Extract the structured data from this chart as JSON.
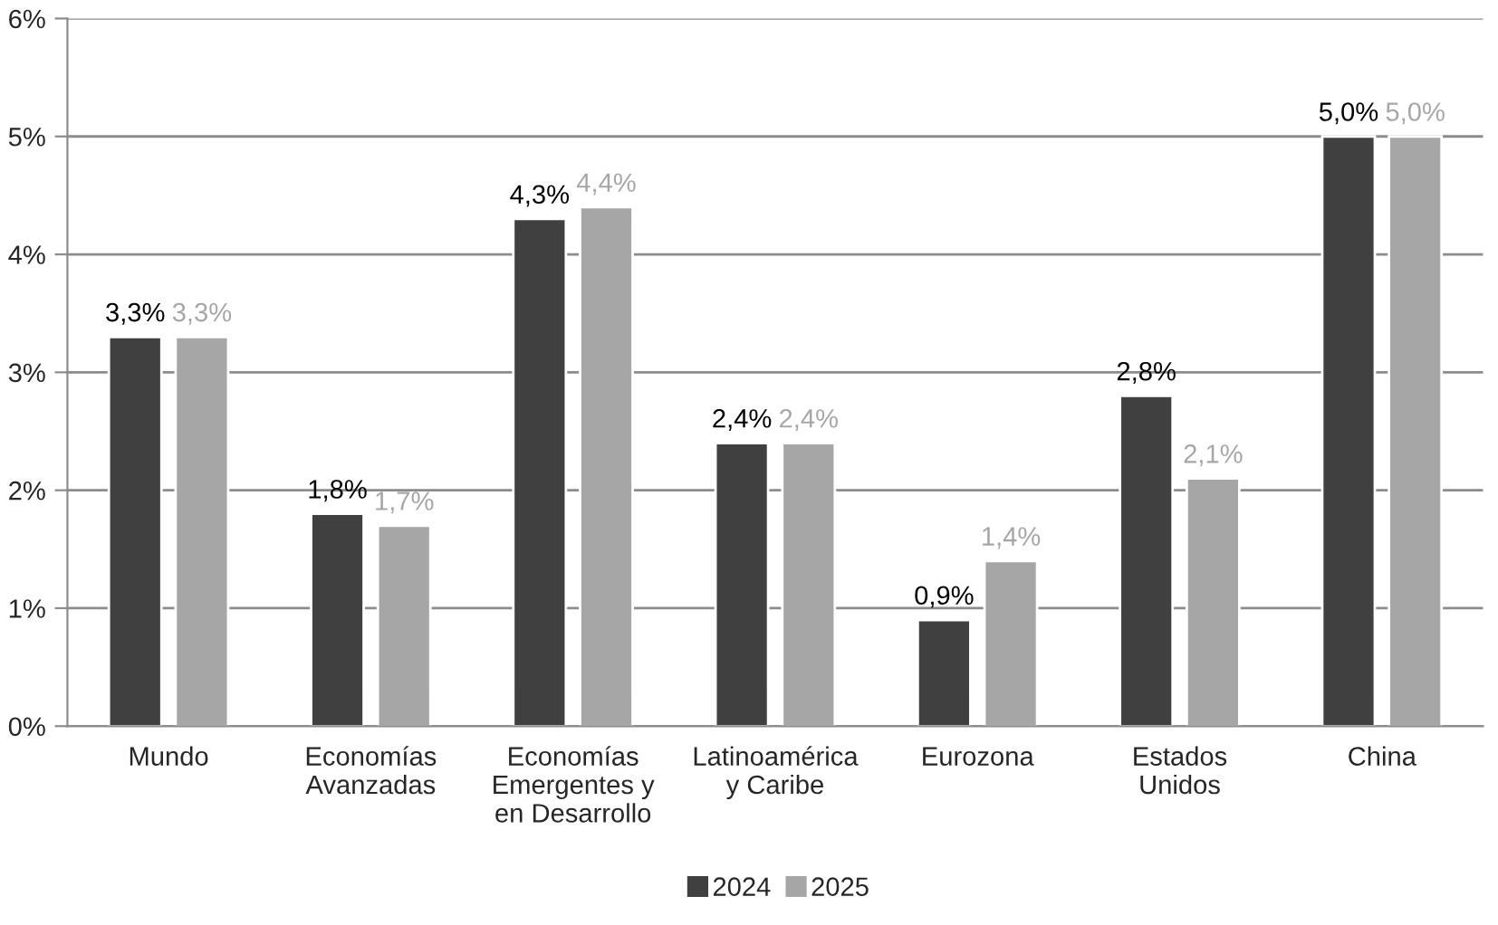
{
  "chart_data": {
    "type": "bar",
    "categories": [
      "Mundo",
      "Economías\nAvanzadas",
      "Economías\nEmergentes y\nen Desarrollo",
      "Latinoamérica\ny Caribe",
      "Eurozona",
      "Estados\nUnidos",
      "China"
    ],
    "series": [
      {
        "name": "2024",
        "color": "#404040",
        "values": [
          3.3,
          1.8,
          4.3,
          2.4,
          0.9,
          2.8,
          5.0
        ],
        "value_labels": [
          "3,3%",
          "1,8%",
          "4,3%",
          "2,4%",
          "0,9%",
          "2,8%",
          "5,0%"
        ]
      },
      {
        "name": "2025",
        "color": "#a6a6a6",
        "values": [
          3.3,
          1.7,
          4.4,
          2.4,
          1.4,
          2.1,
          5.0
        ],
        "value_labels": [
          "3,3%",
          "1,7%",
          "4,4%",
          "2,4%",
          "1,4%",
          "2,1%",
          "5,0%"
        ]
      }
    ],
    "ylim": [
      0,
      6
    ],
    "yticks": [
      {
        "value": 0,
        "label": "0%"
      },
      {
        "value": 1,
        "label": "1%"
      },
      {
        "value": 2,
        "label": "2%"
      },
      {
        "value": 3,
        "label": "3%"
      },
      {
        "value": 4,
        "label": "4%"
      },
      {
        "value": 5,
        "label": "5%"
      },
      {
        "value": 6,
        "label": "6%"
      }
    ],
    "grid": "y",
    "legend": "bottom"
  }
}
